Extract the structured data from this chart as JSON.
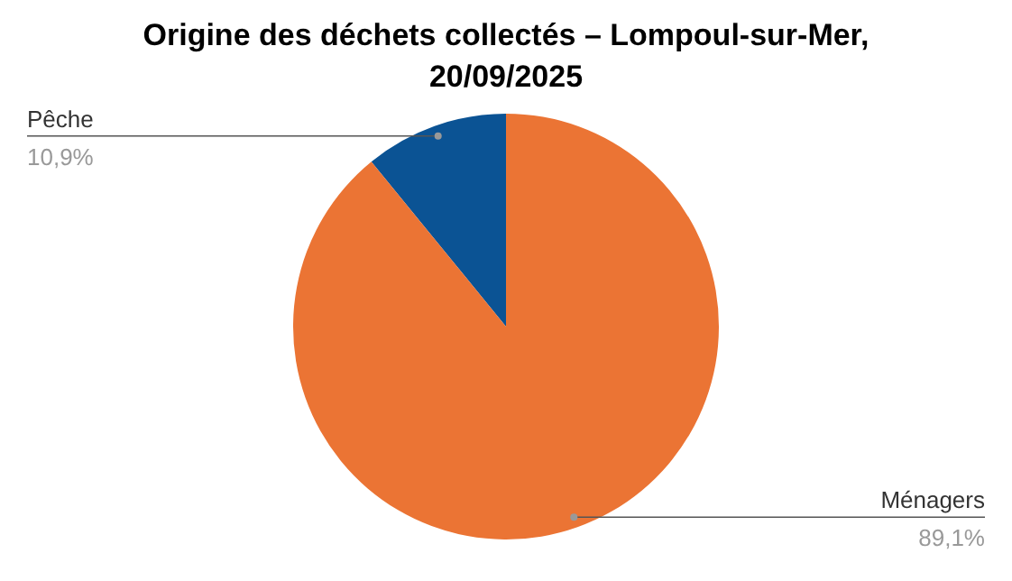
{
  "chart_data": {
    "type": "pie",
    "title": "Origine des déchets collectés – Lompoul-sur-Mer, 20/09/2025",
    "categories": [
      "Pêche",
      "Ménagers"
    ],
    "values": [
      10.9,
      89.1
    ],
    "value_labels": [
      "10,9%",
      "89,1%"
    ],
    "colors": [
      "#0b5394",
      "#eb7434"
    ],
    "legend": false
  }
}
